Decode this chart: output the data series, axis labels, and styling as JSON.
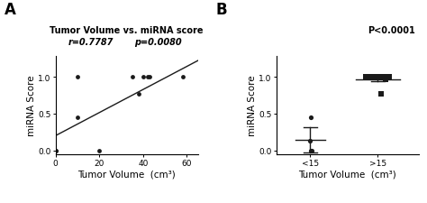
{
  "panel_A": {
    "title_line1": "Tumor Volume vs. miRNA score",
    "title_line2_left": "r=0.7787",
    "title_line2_right": "p=0.0080",
    "scatter_x": [
      0,
      0,
      10,
      10,
      20,
      35,
      38,
      40,
      42,
      43,
      58
    ],
    "scatter_y": [
      0,
      0,
      1.0,
      0.45,
      0.0,
      1.0,
      0.77,
      1.0,
      1.0,
      1.0,
      1.0
    ],
    "line_x": [
      0,
      65
    ],
    "line_y": [
      0.2,
      1.22
    ],
    "xlabel": "Tumor Volume  (cm³)",
    "ylabel": "miRNA Score",
    "xlim": [
      0,
      65
    ],
    "ylim": [
      -0.05,
      1.28
    ],
    "xticks": [
      0,
      20,
      40,
      60
    ],
    "yticks": [
      0.0,
      0.5,
      1.0
    ]
  },
  "panel_B": {
    "pvalue": "P<0.0001",
    "group1_label": "<15",
    "group2_label": ">15",
    "group1_points": [
      0.0,
      0.0,
      0.45,
      0.13
    ],
    "group1_mean": 0.145,
    "group1_sem": 0.17,
    "group2_points": [
      1.0,
      1.0,
      1.0,
      1.0,
      1.0,
      1.0,
      0.77,
      0.97
    ],
    "group2_mean": 0.97,
    "group2_sem": 0.03,
    "xlabel": "Tumor Volume  (cm³)",
    "ylabel": "miRNA Score",
    "ylim": [
      -0.05,
      1.28
    ],
    "yticks": [
      0.0,
      0.5,
      1.0
    ]
  },
  "bg_color": "#ffffff",
  "dot_color": "#1a1a1a",
  "line_color": "#1a1a1a",
  "label_fontsize": 7.5,
  "tick_fontsize": 6.5,
  "title_fontsize": 7.0,
  "panel_label_fontsize": 12
}
